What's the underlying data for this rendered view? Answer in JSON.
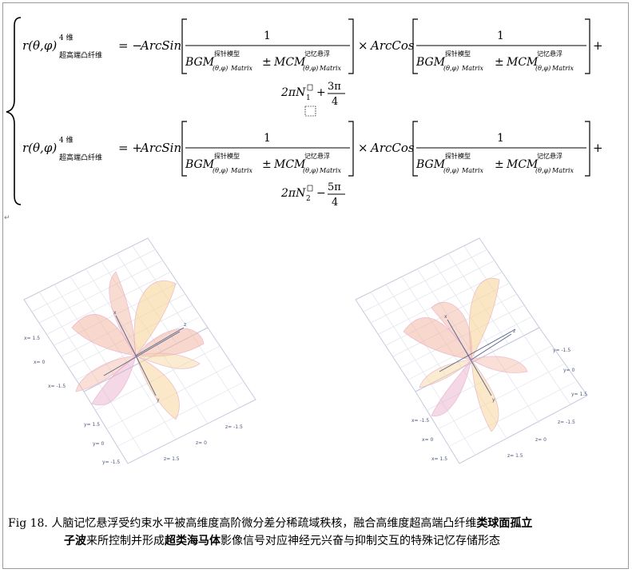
{
  "formula": {
    "lhs_func": "r(θ,φ)",
    "lhs_sup": "4 维",
    "lhs_sub": "超高端凸纤维",
    "eq1_sign": "= −",
    "eq2_sign": "= +",
    "arcsin": "ArcSin",
    "arccos": "ArcCos",
    "times": "×",
    "plus_end": "+",
    "one": "1",
    "bgm": "BGM",
    "bgm_sup": "探针模型",
    "bgm_sub": "(θ,φ)",
    "matrix": "Matrix",
    "pm": "±",
    "mcm": "MCM",
    "mcm_sup": "记忆悬浮",
    "eq1_tail_prefix": "2πN",
    "eq1_tail_sub": "1",
    "eq1_tail_op": "+",
    "eq1_frac_num": "3π",
    "eq1_frac_den": "4",
    "eq2_tail_prefix": "2πN",
    "eq2_tail_sub": "2",
    "eq2_tail_op": "−",
    "eq2_frac_num": "5π",
    "eq2_frac_den": "4"
  },
  "plots": {
    "left": {
      "axis_labels": [
        "x= 1.5",
        "x= 0",
        "x= -1.5",
        "y= 1.5",
        "y= 0",
        "y= -1.5",
        "z= 1.5",
        "z= 0",
        "z= -1.5"
      ],
      "axes": [
        "x",
        "y",
        "z"
      ]
    },
    "right": {
      "axis_labels": [
        "y= -1.5",
        "y= 0",
        "y= 1.5",
        "x= -1.5",
        "x= 0",
        "x= 1.5",
        "z= 1.5",
        "z= 0",
        "z= -1.5"
      ],
      "axes": [
        "x",
        "y",
        "z"
      ]
    }
  },
  "caption": {
    "fig": "Fig 18.",
    "part1": "人脑记忆悬浮受约束水平被高维度高阶微分差分稀疏域秩核，融合高维度超高端凸纤维",
    "bold1": "类球面孤立",
    "bold2": "子波",
    "part2": "来所控制并形成",
    "bold3": "超类海马体",
    "part3": "影像信号对应神经元兴奋与抑制交互的特殊记忆存储形态"
  },
  "colors": {
    "surface_a": "#f2b7a4",
    "surface_b": "#f6d59a",
    "surface_c": "#e7a9c8",
    "axis_gray": "#9fa7c8",
    "grid": "#d9dbe6"
  }
}
